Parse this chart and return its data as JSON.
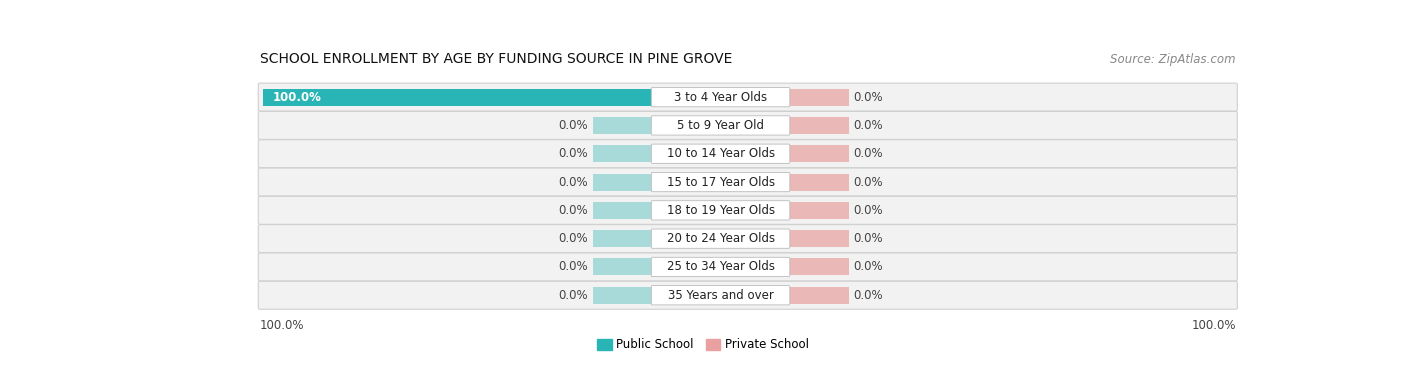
{
  "title": "SCHOOL ENROLLMENT BY AGE BY FUNDING SOURCE IN PINE GROVE",
  "source": "Source: ZipAtlas.com",
  "categories": [
    "3 to 4 Year Olds",
    "5 to 9 Year Old",
    "10 to 14 Year Olds",
    "15 to 17 Year Olds",
    "18 to 19 Year Olds",
    "20 to 24 Year Olds",
    "25 to 34 Year Olds",
    "35 Years and over"
  ],
  "public_values": [
    100.0,
    0.0,
    0.0,
    0.0,
    0.0,
    0.0,
    0.0,
    0.0
  ],
  "private_values": [
    0.0,
    0.0,
    0.0,
    0.0,
    0.0,
    0.0,
    0.0,
    0.0
  ],
  "public_color": "#29b5b5",
  "private_color": "#e8a0a0",
  "public_label": "Public School",
  "private_label": "Private School",
  "bg_color": "#ffffff",
  "row_bg_color": "#f2f2f2",
  "row_alt_color": "#e8e8e8",
  "label_left_100": "100.0%",
  "label_right_100": "100.0%",
  "title_fontsize": 10,
  "source_fontsize": 8.5,
  "label_fontsize": 8.5,
  "category_fontsize": 8.5,
  "pub_bar_color_zero": "#a8dada",
  "priv_bar_color_zero": "#ebb8b8"
}
